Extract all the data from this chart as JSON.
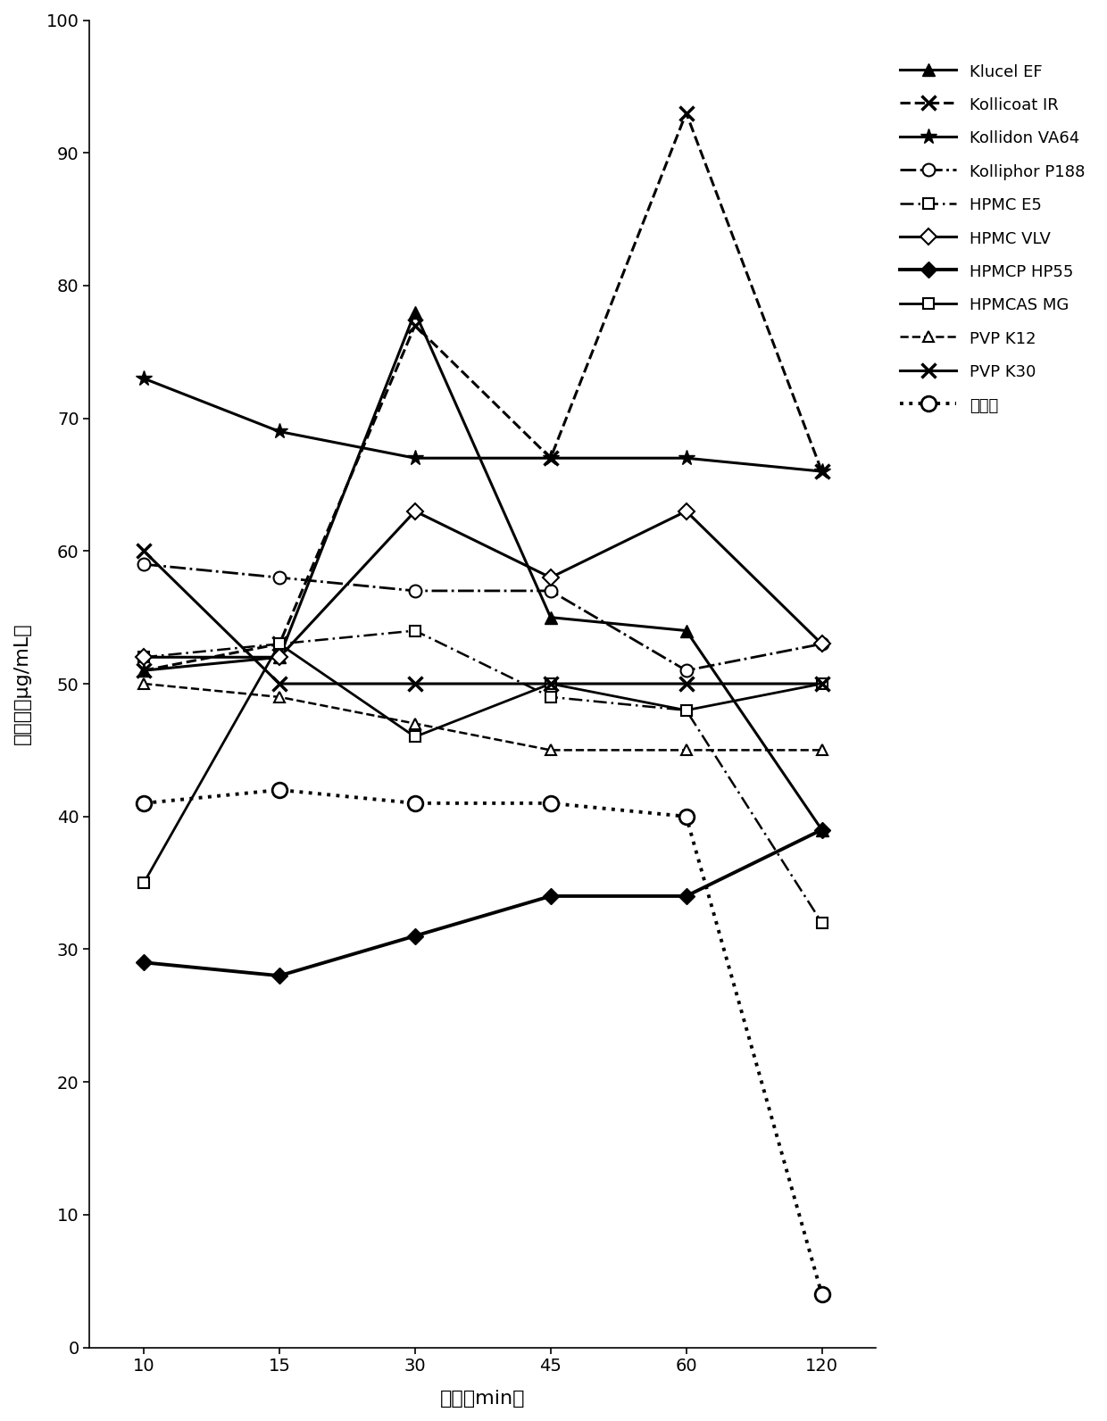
{
  "x_labels": [
    "10",
    "15",
    "30",
    "45",
    "60",
    "120"
  ],
  "x_positions": [
    0,
    1,
    2,
    3,
    4,
    5
  ],
  "series": {
    "Klucel EF": {
      "y": [
        51,
        52,
        78,
        55,
        54,
        39
      ]
    },
    "Kollicoat IR": {
      "y": [
        51,
        53,
        77,
        67,
        93,
        66
      ]
    },
    "Kollidon VA64": {
      "y": [
        73,
        69,
        67,
        67,
        67,
        66
      ]
    },
    "Kolliphor P188": {
      "y": [
        59,
        58,
        57,
        57,
        51,
        53
      ]
    },
    "HPMC E5": {
      "y": [
        52,
        53,
        54,
        49,
        48,
        32
      ]
    },
    "HPMC VLV": {
      "y": [
        52,
        52,
        63,
        58,
        63,
        53
      ]
    },
    "HPMCP HP55": {
      "y": [
        29,
        28,
        31,
        34,
        34,
        39
      ]
    },
    "HPMCAS MG": {
      "y": [
        35,
        53,
        46,
        50,
        48,
        50
      ]
    },
    "PVP K12": {
      "y": [
        50,
        49,
        47,
        45,
        45,
        45
      ]
    },
    "PVP K30": {
      "y": [
        60,
        50,
        50,
        50,
        50,
        50
      ]
    },
    "对照组": {
      "y": [
        41,
        42,
        41,
        41,
        40,
        4
      ]
    }
  },
  "xlabel": "时间（min）",
  "ylabel": "溶解度（μg/mL）",
  "ylim": [
    0,
    100
  ],
  "yticks": [
    0,
    10,
    20,
    30,
    40,
    50,
    60,
    70,
    80,
    90,
    100
  ],
  "background_color": "#ffffff",
  "axis_fontsize": 16,
  "tick_fontsize": 14,
  "legend_fontsize": 13
}
